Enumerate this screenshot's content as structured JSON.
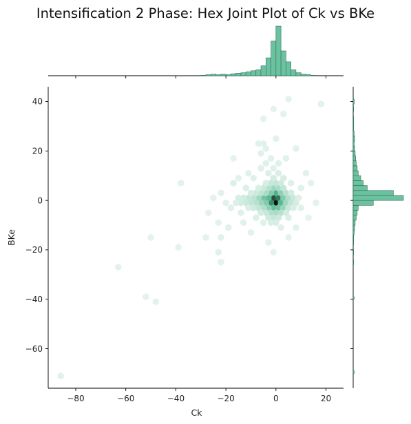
{
  "title": "Intensification 2 Phase: Hex Joint Plot of Ck vs BKe",
  "colors": {
    "hex_base": "#4cb38a",
    "bar_fill": "#6cc2a0",
    "bar_edge": "#2b6e55",
    "dark": "#111111"
  },
  "chart_data": {
    "type": "hexbin-joint",
    "xlabel": "Ck",
    "ylabel": "BKe",
    "xlim": [
      -91,
      27
    ],
    "ylim": [
      -76,
      46
    ],
    "xticks": [
      -80,
      -60,
      -40,
      -20,
      0,
      20
    ],
    "yticks": [
      -60,
      -40,
      -20,
      0,
      20,
      40
    ],
    "xtick_labels": [
      "−80",
      "−60",
      "−40",
      "−20",
      "0",
      "20"
    ],
    "ytick_labels": [
      "−60",
      "−40",
      "−20",
      "0",
      "20",
      "40"
    ],
    "hexbins": [
      {
        "x": 0,
        "y": -1,
        "d": 1.0
      },
      {
        "x": -1,
        "y": 1,
        "d": 0.85
      },
      {
        "x": 1,
        "y": 1,
        "d": 0.75
      },
      {
        "x": -2,
        "y": -1,
        "d": 0.7
      },
      {
        "x": 0,
        "y": 3,
        "d": 0.6
      },
      {
        "x": -3,
        "y": 1,
        "d": 0.55
      },
      {
        "x": 2,
        "y": -1,
        "d": 0.55
      },
      {
        "x": -1,
        "y": -3,
        "d": 0.5
      },
      {
        "x": 1,
        "y": -3,
        "d": 0.45
      },
      {
        "x": -5,
        "y": 1,
        "d": 0.45
      },
      {
        "x": -4,
        "y": -1,
        "d": 0.4
      },
      {
        "x": 3,
        "y": 1,
        "d": 0.4
      },
      {
        "x": -2,
        "y": 3,
        "d": 0.4
      },
      {
        "x": 2,
        "y": 3,
        "d": 0.35
      },
      {
        "x": -3,
        "y": -3,
        "d": 0.35
      },
      {
        "x": 3,
        "y": -3,
        "d": 0.3
      },
      {
        "x": -6,
        "y": -1,
        "d": 0.3
      },
      {
        "x": -1,
        "y": 5,
        "d": 0.3
      },
      {
        "x": -7,
        "y": 1,
        "d": 0.28
      },
      {
        "x": 4,
        "y": -1,
        "d": 0.28
      },
      {
        "x": 1,
        "y": 5,
        "d": 0.25
      },
      {
        "x": -4,
        "y": 3,
        "d": 0.25
      },
      {
        "x": 0,
        "y": -5,
        "d": 0.25
      },
      {
        "x": -2,
        "y": -5,
        "d": 0.22
      },
      {
        "x": -5,
        "y": -3,
        "d": 0.22
      },
      {
        "x": 5,
        "y": 1,
        "d": 0.22
      },
      {
        "x": -8,
        "y": -1,
        "d": 0.2
      },
      {
        "x": 4,
        "y": 3,
        "d": 0.2
      },
      {
        "x": -3,
        "y": 5,
        "d": 0.2
      },
      {
        "x": 2,
        "y": -5,
        "d": 0.2
      },
      {
        "x": -9,
        "y": 1,
        "d": 0.18
      },
      {
        "x": -6,
        "y": 3,
        "d": 0.18
      },
      {
        "x": 6,
        "y": -1,
        "d": 0.16
      },
      {
        "x": -10,
        "y": -1,
        "d": 0.16
      },
      {
        "x": 0,
        "y": 7,
        "d": 0.16
      },
      {
        "x": -7,
        "y": -3,
        "d": 0.16
      },
      {
        "x": -1,
        "y": -7,
        "d": 0.15
      },
      {
        "x": 3,
        "y": 5,
        "d": 0.15
      },
      {
        "x": -11,
        "y": 1,
        "d": 0.14
      },
      {
        "x": 5,
        "y": -3,
        "d": 0.14
      },
      {
        "x": -4,
        "y": -5,
        "d": 0.14
      },
      {
        "x": -2,
        "y": 7,
        "d": 0.14
      },
      {
        "x": 7,
        "y": 1,
        "d": 0.13
      },
      {
        "x": -12,
        "y": -1,
        "d": 0.12
      },
      {
        "x": -5,
        "y": 5,
        "d": 0.12
      },
      {
        "x": 1,
        "y": -7,
        "d": 0.12
      },
      {
        "x": -8,
        "y": 3,
        "d": 0.12
      },
      {
        "x": -9,
        "y": -3,
        "d": 0.11
      },
      {
        "x": 2,
        "y": 7,
        "d": 0.11
      },
      {
        "x": -3,
        "y": -7,
        "d": 0.11
      },
      {
        "x": 6,
        "y": 3,
        "d": 0.1
      },
      {
        "x": -13,
        "y": 1,
        "d": 0.1
      },
      {
        "x": 4,
        "y": -5,
        "d": 0.1
      },
      {
        "x": -14,
        "y": -1,
        "d": 0.09
      },
      {
        "x": -1,
        "y": 9,
        "d": 0.09
      },
      {
        "x": -6,
        "y": -5,
        "d": 0.09
      },
      {
        "x": 8,
        "y": -1,
        "d": 0.09
      },
      {
        "x": -15,
        "y": 1,
        "d": 0.08
      },
      {
        "x": -4,
        "y": 7,
        "d": 0.08
      },
      {
        "x": 0,
        "y": -9,
        "d": 0.08
      },
      {
        "x": -10,
        "y": 3,
        "d": 0.08
      },
      {
        "x": 3,
        "y": 9,
        "d": 0.08
      },
      {
        "x": -11,
        "y": -3,
        "d": 0.07
      },
      {
        "x": -2,
        "y": -9,
        "d": 0.07
      },
      {
        "x": 7,
        "y": -3,
        "d": 0.07
      },
      {
        "x": -7,
        "y": 5,
        "d": 0.07
      },
      {
        "x": 1,
        "y": 11,
        "d": 0.07
      },
      {
        "x": -3,
        "y": 11,
        "d": 0.06
      },
      {
        "x": -16,
        "y": -1,
        "d": 0.06
      },
      {
        "x": -17,
        "y": 7,
        "d": 0.06
      },
      {
        "x": -8,
        "y": -7,
        "d": 0.06
      },
      {
        "x": 5,
        "y": -7,
        "d": 0.06
      },
      {
        "x": -12,
        "y": 5,
        "d": 0.06
      },
      {
        "x": 9,
        "y": 1,
        "d": 0.06
      },
      {
        "x": -5,
        "y": -9,
        "d": 0.05
      },
      {
        "x": 6,
        "y": 7,
        "d": 0.05
      },
      {
        "x": -1,
        "y": 13,
        "d": 0.05
      },
      {
        "x": -14,
        "y": -5,
        "d": 0.05
      },
      {
        "x": 2,
        "y": -11,
        "d": 0.05
      },
      {
        "x": -9,
        "y": 9,
        "d": 0.05
      },
      {
        "x": -18,
        "y": -3,
        "d": 0.05
      },
      {
        "x": 10,
        "y": -3,
        "d": 0.05
      },
      {
        "x": -6,
        "y": 13,
        "d": 0.05
      },
      {
        "x": 1,
        "y": 15,
        "d": 0.05
      },
      {
        "x": -4,
        "y": 15,
        "d": 0.05
      },
      {
        "x": -2,
        "y": 17,
        "d": 0.045
      },
      {
        "x": -6,
        "y": 19,
        "d": 0.045
      },
      {
        "x": -4,
        "y": 21,
        "d": 0.045
      },
      {
        "x": -7,
        "y": 23,
        "d": 0.04
      },
      {
        "x": -5,
        "y": 23,
        "d": 0.04
      },
      {
        "x": 0,
        "y": 25,
        "d": 0.04
      },
      {
        "x": -11,
        "y": 11,
        "d": 0.04
      },
      {
        "x": -15,
        "y": 9,
        "d": 0.04
      },
      {
        "x": -20,
        "y": -1,
        "d": 0.04
      },
      {
        "x": -22,
        "y": 3,
        "d": 0.04
      },
      {
        "x": -19,
        "y": -11,
        "d": 0.04
      },
      {
        "x": -22,
        "y": -15,
        "d": 0.04
      },
      {
        "x": -10,
        "y": -13,
        "d": 0.04
      },
      {
        "x": -13,
        "y": -9,
        "d": 0.04
      },
      {
        "x": -23,
        "y": -9,
        "d": 0.035
      },
      {
        "x": -25,
        "y": 1,
        "d": 0.035
      },
      {
        "x": -27,
        "y": -5,
        "d": 0.035
      },
      {
        "x": -28,
        "y": -15,
        "d": 0.035
      },
      {
        "x": -23,
        "y": -21,
        "d": 0.04
      },
      {
        "x": -22,
        "y": -25,
        "d": 0.035
      },
      {
        "x": -38,
        "y": 7,
        "d": 0.035
      },
      {
        "x": -39,
        "y": -19,
        "d": 0.035
      },
      {
        "x": -50,
        "y": -15,
        "d": 0.03
      },
      {
        "x": -63,
        "y": -27,
        "d": 0.035
      },
      {
        "x": -52,
        "y": -39,
        "d": 0.035
      },
      {
        "x": -48,
        "y": -41,
        "d": 0.035
      },
      {
        "x": -86,
        "y": -71,
        "d": 0.04
      },
      {
        "x": 5,
        "y": 41,
        "d": 0.035
      },
      {
        "x": 3,
        "y": 35,
        "d": 0.035
      },
      {
        "x": -1,
        "y": 37,
        "d": 0.03
      },
      {
        "x": -5,
        "y": 33,
        "d": 0.03
      },
      {
        "x": 18,
        "y": 39,
        "d": 0.035
      },
      {
        "x": 12,
        "y": 11,
        "d": 0.04
      },
      {
        "x": 14,
        "y": 7,
        "d": 0.035
      },
      {
        "x": 16,
        "y": -1,
        "d": 0.035
      },
      {
        "x": 13,
        "y": -7,
        "d": 0.03
      },
      {
        "x": 8,
        "y": -11,
        "d": 0.04
      },
      {
        "x": 10,
        "y": 5,
        "d": 0.05
      },
      {
        "x": 4,
        "y": 17,
        "d": 0.04
      },
      {
        "x": 8,
        "y": 21,
        "d": 0.035
      },
      {
        "x": -3,
        "y": -17,
        "d": 0.035
      },
      {
        "x": -17,
        "y": 17,
        "d": 0.03
      },
      {
        "x": -1,
        "y": -21,
        "d": 0.03
      },
      {
        "x": 5,
        "y": -15,
        "d": 0.035
      }
    ],
    "marg_x": {
      "bin_edges": [
        -30,
        -28,
        -26,
        -24,
        -22,
        -20,
        -18,
        -16,
        -14,
        -12,
        -10,
        -8,
        -6,
        -4,
        -2,
        0,
        2,
        4,
        6,
        8,
        10,
        12,
        14,
        16
      ],
      "counts": [
        1,
        2,
        3,
        2,
        3,
        2,
        4,
        5,
        6,
        8,
        10,
        12,
        20,
        36,
        70,
        100,
        50,
        28,
        12,
        6,
        3,
        2,
        1
      ]
    },
    "marg_y": {
      "bin_edges": [
        -26,
        -24,
        -22,
        -20,
        -18,
        -16,
        -14,
        -12,
        -10,
        -8,
        -6,
        -4,
        -2,
        0,
        2,
        4,
        6,
        8,
        10,
        12,
        14,
        16,
        18,
        20,
        22,
        24,
        26,
        28,
        30,
        32,
        34,
        36,
        38
      ],
      "counts": [
        1,
        0,
        1,
        0,
        1,
        1,
        2,
        3,
        4,
        6,
        8,
        10,
        40,
        100,
        80,
        28,
        20,
        15,
        10,
        8,
        6,
        5,
        4,
        3,
        2,
        3,
        2,
        1,
        1,
        1,
        0,
        1
      ],
      "extra_bins": [
        {
          "y0": 39,
          "y1": 41,
          "c": 1
        },
        {
          "y0": -40,
          "y1": -39,
          "c": 1
        },
        {
          "y0": -70,
          "y1": -69,
          "c": 1
        }
      ]
    }
  }
}
